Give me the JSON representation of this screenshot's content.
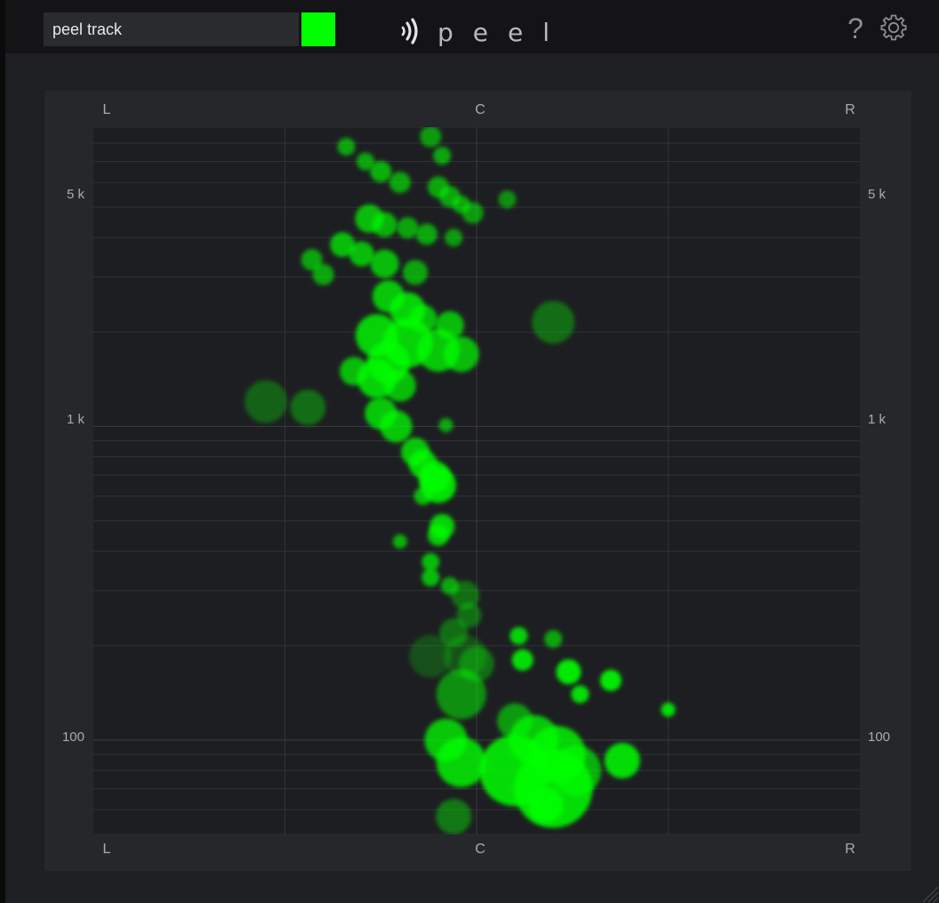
{
  "header": {
    "track_name": "peel track",
    "track_color": "#00ff00",
    "logo_text": "peel",
    "help_label": "?",
    "settings_icon": "gear-icon"
  },
  "panel": {
    "top_labels": [
      "L",
      "C",
      "R"
    ],
    "bottom_labels": [
      "L",
      "C",
      "R"
    ],
    "freq_labels_left": [
      "5 k",
      "1 k",
      "100"
    ],
    "freq_labels_right": [
      "5 k",
      "1 k",
      "100"
    ]
  },
  "chart_data": {
    "type": "scatter",
    "x_axis": {
      "labels": [
        "L",
        "C",
        "R"
      ],
      "range": [
        -1,
        1
      ]
    },
    "y_axis": {
      "scale": "log",
      "labels": [
        "5 k",
        "1 k",
        "100"
      ],
      "range": [
        50,
        9000
      ]
    },
    "point_color": "#00ff00",
    "grid": true,
    "points": [
      {
        "x": -0.34,
        "y": 7800,
        "size": 2.5,
        "opacity": 0.6
      },
      {
        "x": -0.29,
        "y": 7000,
        "size": 2.5,
        "opacity": 0.6
      },
      {
        "x": -0.25,
        "y": 6500,
        "size": 3,
        "opacity": 0.65
      },
      {
        "x": -0.2,
        "y": 6000,
        "size": 3,
        "opacity": 0.6
      },
      {
        "x": -0.12,
        "y": 8400,
        "size": 3,
        "opacity": 0.55
      },
      {
        "x": -0.09,
        "y": 7300,
        "size": 2.5,
        "opacity": 0.6
      },
      {
        "x": -0.1,
        "y": 5800,
        "size": 3,
        "opacity": 0.6
      },
      {
        "x": -0.07,
        "y": 5400,
        "size": 3,
        "opacity": 0.6
      },
      {
        "x": -0.04,
        "y": 5100,
        "size": 2.5,
        "opacity": 0.6
      },
      {
        "x": -0.01,
        "y": 4800,
        "size": 3,
        "opacity": 0.55
      },
      {
        "x": 0.08,
        "y": 5300,
        "size": 2.5,
        "opacity": 0.5
      },
      {
        "x": -0.28,
        "y": 4600,
        "size": 4,
        "opacity": 0.7
      },
      {
        "x": -0.24,
        "y": 4400,
        "size": 3.5,
        "opacity": 0.65
      },
      {
        "x": -0.18,
        "y": 4300,
        "size": 3,
        "opacity": 0.6
      },
      {
        "x": -0.13,
        "y": 4100,
        "size": 3,
        "opacity": 0.6
      },
      {
        "x": -0.06,
        "y": 4000,
        "size": 2.5,
        "opacity": 0.55
      },
      {
        "x": -0.35,
        "y": 3800,
        "size": 3.5,
        "opacity": 0.7
      },
      {
        "x": -0.3,
        "y": 3550,
        "size": 3.5,
        "opacity": 0.7
      },
      {
        "x": -0.24,
        "y": 3300,
        "size": 4,
        "opacity": 0.7
      },
      {
        "x": -0.16,
        "y": 3100,
        "size": 3.5,
        "opacity": 0.6
      },
      {
        "x": -0.43,
        "y": 3400,
        "size": 3,
        "opacity": 0.6
      },
      {
        "x": -0.4,
        "y": 3050,
        "size": 3,
        "opacity": 0.6
      },
      {
        "x": -0.23,
        "y": 2600,
        "size": 4.5,
        "opacity": 0.75
      },
      {
        "x": -0.18,
        "y": 2350,
        "size": 5,
        "opacity": 0.8
      },
      {
        "x": -0.14,
        "y": 2200,
        "size": 4,
        "opacity": 0.7
      },
      {
        "x": -0.07,
        "y": 2100,
        "size": 4,
        "opacity": 0.7
      },
      {
        "x": 0.2,
        "y": 2150,
        "size": 6,
        "opacity": 0.35
      },
      {
        "x": -0.26,
        "y": 1950,
        "size": 6,
        "opacity": 0.8
      },
      {
        "x": -0.18,
        "y": 1850,
        "size": 7,
        "opacity": 0.8
      },
      {
        "x": -0.1,
        "y": 1750,
        "size": 6,
        "opacity": 0.75
      },
      {
        "x": -0.04,
        "y": 1700,
        "size": 5,
        "opacity": 0.7
      },
      {
        "x": -0.23,
        "y": 1600,
        "size": 6,
        "opacity": 0.8
      },
      {
        "x": -0.32,
        "y": 1500,
        "size": 4,
        "opacity": 0.7
      },
      {
        "x": -0.26,
        "y": 1420,
        "size": 5.5,
        "opacity": 0.8
      },
      {
        "x": -0.2,
        "y": 1350,
        "size": 4.5,
        "opacity": 0.7
      },
      {
        "x": -0.55,
        "y": 1200,
        "size": 6,
        "opacity": 0.3
      },
      {
        "x": -0.44,
        "y": 1150,
        "size": 5,
        "opacity": 0.35
      },
      {
        "x": -0.25,
        "y": 1100,
        "size": 4.5,
        "opacity": 0.75
      },
      {
        "x": -0.21,
        "y": 1000,
        "size": 4.5,
        "opacity": 0.75
      },
      {
        "x": -0.08,
        "y": 1010,
        "size": 2,
        "opacity": 0.6
      },
      {
        "x": -0.16,
        "y": 830,
        "size": 4,
        "opacity": 0.75
      },
      {
        "x": -0.14,
        "y": 760,
        "size": 4,
        "opacity": 0.8
      },
      {
        "x": -0.11,
        "y": 690,
        "size": 4.5,
        "opacity": 0.85
      },
      {
        "x": -0.1,
        "y": 650,
        "size": 5,
        "opacity": 0.85
      },
      {
        "x": -0.14,
        "y": 600,
        "size": 2.5,
        "opacity": 0.7
      },
      {
        "x": -0.09,
        "y": 480,
        "size": 3.5,
        "opacity": 0.8
      },
      {
        "x": -0.1,
        "y": 450,
        "size": 3,
        "opacity": 0.75
      },
      {
        "x": -0.2,
        "y": 430,
        "size": 2,
        "opacity": 0.65
      },
      {
        "x": -0.12,
        "y": 370,
        "size": 2.5,
        "opacity": 0.7
      },
      {
        "x": -0.12,
        "y": 330,
        "size": 2.5,
        "opacity": 0.7
      },
      {
        "x": -0.07,
        "y": 310,
        "size": 2.5,
        "opacity": 0.6
      },
      {
        "x": -0.03,
        "y": 290,
        "size": 4,
        "opacity": 0.35
      },
      {
        "x": -0.02,
        "y": 250,
        "size": 3.5,
        "opacity": 0.35
      },
      {
        "x": -0.06,
        "y": 220,
        "size": 4,
        "opacity": 0.35
      },
      {
        "x": -0.12,
        "y": 185,
        "size": 6,
        "opacity": 0.22
      },
      {
        "x": -0.03,
        "y": 185,
        "size": 6,
        "opacity": 0.22
      },
      {
        "x": 0.11,
        "y": 215,
        "size": 2.5,
        "opacity": 0.8
      },
      {
        "x": 0.2,
        "y": 210,
        "size": 2.5,
        "opacity": 0.6
      },
      {
        "x": -0.04,
        "y": 140,
        "size": 7,
        "opacity": 0.5
      },
      {
        "x": 0.0,
        "y": 175,
        "size": 5,
        "opacity": 0.35
      },
      {
        "x": 0.12,
        "y": 180,
        "size": 3,
        "opacity": 0.85
      },
      {
        "x": 0.24,
        "y": 165,
        "size": 3.5,
        "opacity": 0.9
      },
      {
        "x": 0.27,
        "y": 140,
        "size": 2.5,
        "opacity": 0.85
      },
      {
        "x": 0.35,
        "y": 155,
        "size": 3,
        "opacity": 0.9
      },
      {
        "x": 0.5,
        "y": 125,
        "size": 2,
        "opacity": 0.85
      },
      {
        "x": -0.08,
        "y": 100,
        "size": 6,
        "opacity": 0.75
      },
      {
        "x": -0.04,
        "y": 85,
        "size": 7,
        "opacity": 0.8
      },
      {
        "x": 0.1,
        "y": 115,
        "size": 5,
        "opacity": 0.55
      },
      {
        "x": 0.15,
        "y": 100,
        "size": 7,
        "opacity": 0.75
      },
      {
        "x": 0.21,
        "y": 90,
        "size": 8,
        "opacity": 0.8
      },
      {
        "x": 0.1,
        "y": 80,
        "size": 10,
        "opacity": 0.85
      },
      {
        "x": 0.2,
        "y": 70,
        "size": 11,
        "opacity": 0.85
      },
      {
        "x": 0.26,
        "y": 80,
        "size": 7,
        "opacity": 0.65
      },
      {
        "x": 0.38,
        "y": 86,
        "size": 5,
        "opacity": 0.85
      },
      {
        "x": 0.18,
        "y": 62,
        "size": 5,
        "opacity": 0.9
      },
      {
        "x": -0.06,
        "y": 57,
        "size": 5,
        "opacity": 0.4
      }
    ]
  }
}
